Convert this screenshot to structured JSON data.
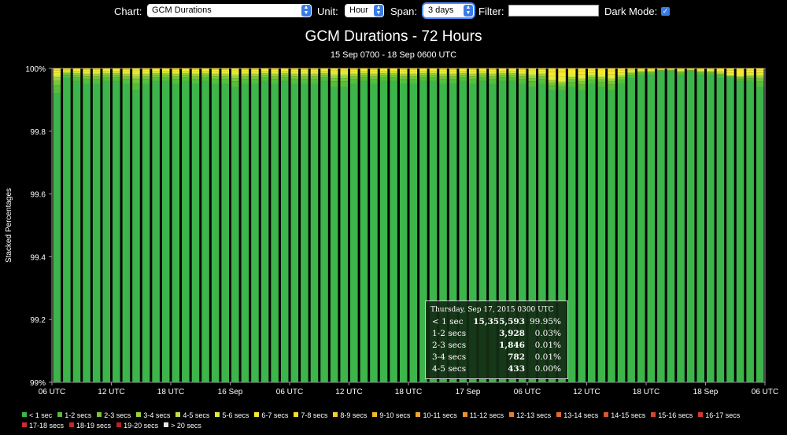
{
  "toolbar": {
    "chart_label": "Chart:",
    "chart_value": "GCM Durations",
    "unit_label": "Unit:",
    "unit_value": "Hour",
    "span_label": "Span:",
    "span_value": "3 days",
    "filter_label": "Filter:",
    "filter_value": "",
    "dark_mode_label": "Dark Mode:",
    "dark_mode_checked": true,
    "accent_color": "#3b7be6"
  },
  "chart_data": {
    "type": "bar",
    "stacked": true,
    "title": "GCM Durations - 72 Hours",
    "subtitle": "15 Sep 0700 - 18 Sep 0600 UTC",
    "ylabel": "Stacked Percentages",
    "ylim": [
      99,
      100
    ],
    "yticks": [
      "99%",
      "99.2",
      "99.4",
      "99.6",
      "99.8",
      "100%"
    ],
    "ytick_values": [
      99,
      99.2,
      99.4,
      99.6,
      99.8,
      100
    ],
    "xticks": [
      "06 UTC",
      "12 UTC",
      "18 UTC",
      "16 Sep",
      "06 UTC",
      "12 UTC",
      "18 UTC",
      "17 Sep",
      "06 UTC",
      "12 UTC",
      "18 UTC",
      "18 Sep",
      "06 UTC"
    ],
    "xtick_hour_index": [
      -1,
      5,
      11,
      17,
      23,
      29,
      35,
      41,
      47,
      53,
      59,
      65,
      71
    ],
    "bar_count": 72,
    "series": [
      {
        "name": "< 1 sec",
        "color": "#3cb54a"
      },
      {
        "name": "1-2 secs",
        "color": "#55be3a"
      },
      {
        "name": "2-3 secs",
        "color": "#75c83a"
      },
      {
        "name": "3-4 secs",
        "color": "#9ad43c"
      },
      {
        "name": "4-5 secs",
        "color": "#c2e040"
      },
      {
        "name": "5-6 secs",
        "color": "#e2ea3c"
      },
      {
        "name": "6-7 secs",
        "color": "#f5ea2e"
      },
      {
        "name": "7-8 secs",
        "color": "#f5df2a"
      },
      {
        "name": "8-9 secs",
        "color": "#f3cf28"
      },
      {
        "name": "9-10 secs",
        "color": "#f0b928"
      },
      {
        "name": "10-11 secs",
        "color": "#eda52a"
      },
      {
        "name": "11-12 secs",
        "color": "#e9922c"
      },
      {
        "name": "12-13 secs",
        "color": "#e47e2e"
      },
      {
        "name": "13-14 secs",
        "color": "#df6a30"
      },
      {
        "name": "14-15 secs",
        "color": "#d95632"
      },
      {
        "name": "15-16 secs",
        "color": "#d44632"
      },
      {
        "name": "16-17 secs",
        "color": "#cf3a32"
      },
      {
        "name": "17-18 secs",
        "color": "#cc2e30"
      },
      {
        "name": "18-19 secs",
        "color": "#c8242c"
      },
      {
        "name": "19-20 secs",
        "color": "#c41e28"
      },
      {
        "name": "> 20 secs",
        "color": "#e6e6e6"
      }
    ],
    "lt1_percent": [
      99.92,
      99.97,
      99.96,
      99.95,
      99.95,
      99.96,
      99.96,
      99.95,
      99.93,
      99.95,
      99.96,
      99.96,
      99.95,
      99.96,
      99.95,
      99.96,
      99.95,
      99.95,
      99.94,
      99.95,
      99.95,
      99.96,
      99.95,
      99.96,
      99.95,
      99.95,
      99.95,
      99.96,
      99.94,
      99.94,
      99.95,
      99.96,
      99.95,
      99.96,
      99.96,
      99.95,
      99.95,
      99.96,
      99.96,
      99.95,
      99.95,
      99.96,
      99.95,
      99.96,
      99.95,
      99.96,
      99.96,
      99.95,
      99.94,
      99.95,
      99.93,
      99.93,
      99.94,
      99.93,
      99.95,
      99.94,
      99.93,
      99.95,
      99.97,
      99.98,
      99.98,
      99.99,
      99.99,
      99.98,
      99.99,
      99.98,
      99.98,
      99.97,
      99.97,
      99.96,
      99.96,
      99.94
    ],
    "yellow_tops": [
      9,
      4,
      5,
      6,
      6,
      5,
      5,
      6,
      7,
      6,
      5,
      5,
      6,
      5,
      6,
      5,
      6,
      6,
      7,
      6,
      6,
      5,
      6,
      5,
      6,
      6,
      6,
      5,
      7,
      7,
      6,
      5,
      6,
      5,
      5,
      6,
      6,
      5,
      5,
      6,
      6,
      5,
      6,
      5,
      6,
      5,
      5,
      6,
      7,
      6,
      14,
      16,
      10,
      12,
      8,
      10,
      12,
      8,
      4,
      3,
      3,
      2,
      2,
      3,
      2,
      3,
      3,
      5,
      9,
      10,
      8,
      8
    ]
  },
  "tooltip": {
    "header": "Thursday, Sep 17, 2015 0300 UTC",
    "rows": [
      {
        "label": "< 1 sec",
        "count": "15,355,593",
        "pct": "99.95%"
      },
      {
        "label": "1-2 secs",
        "count": "3,928",
        "pct": "0.03%"
      },
      {
        "label": "2-3 secs",
        "count": "1,846",
        "pct": "0.01%"
      },
      {
        "label": "3-4 secs",
        "count": "782",
        "pct": "0.01%"
      },
      {
        "label": "4-5 secs",
        "count": "433",
        "pct": "0.00%"
      }
    ]
  }
}
